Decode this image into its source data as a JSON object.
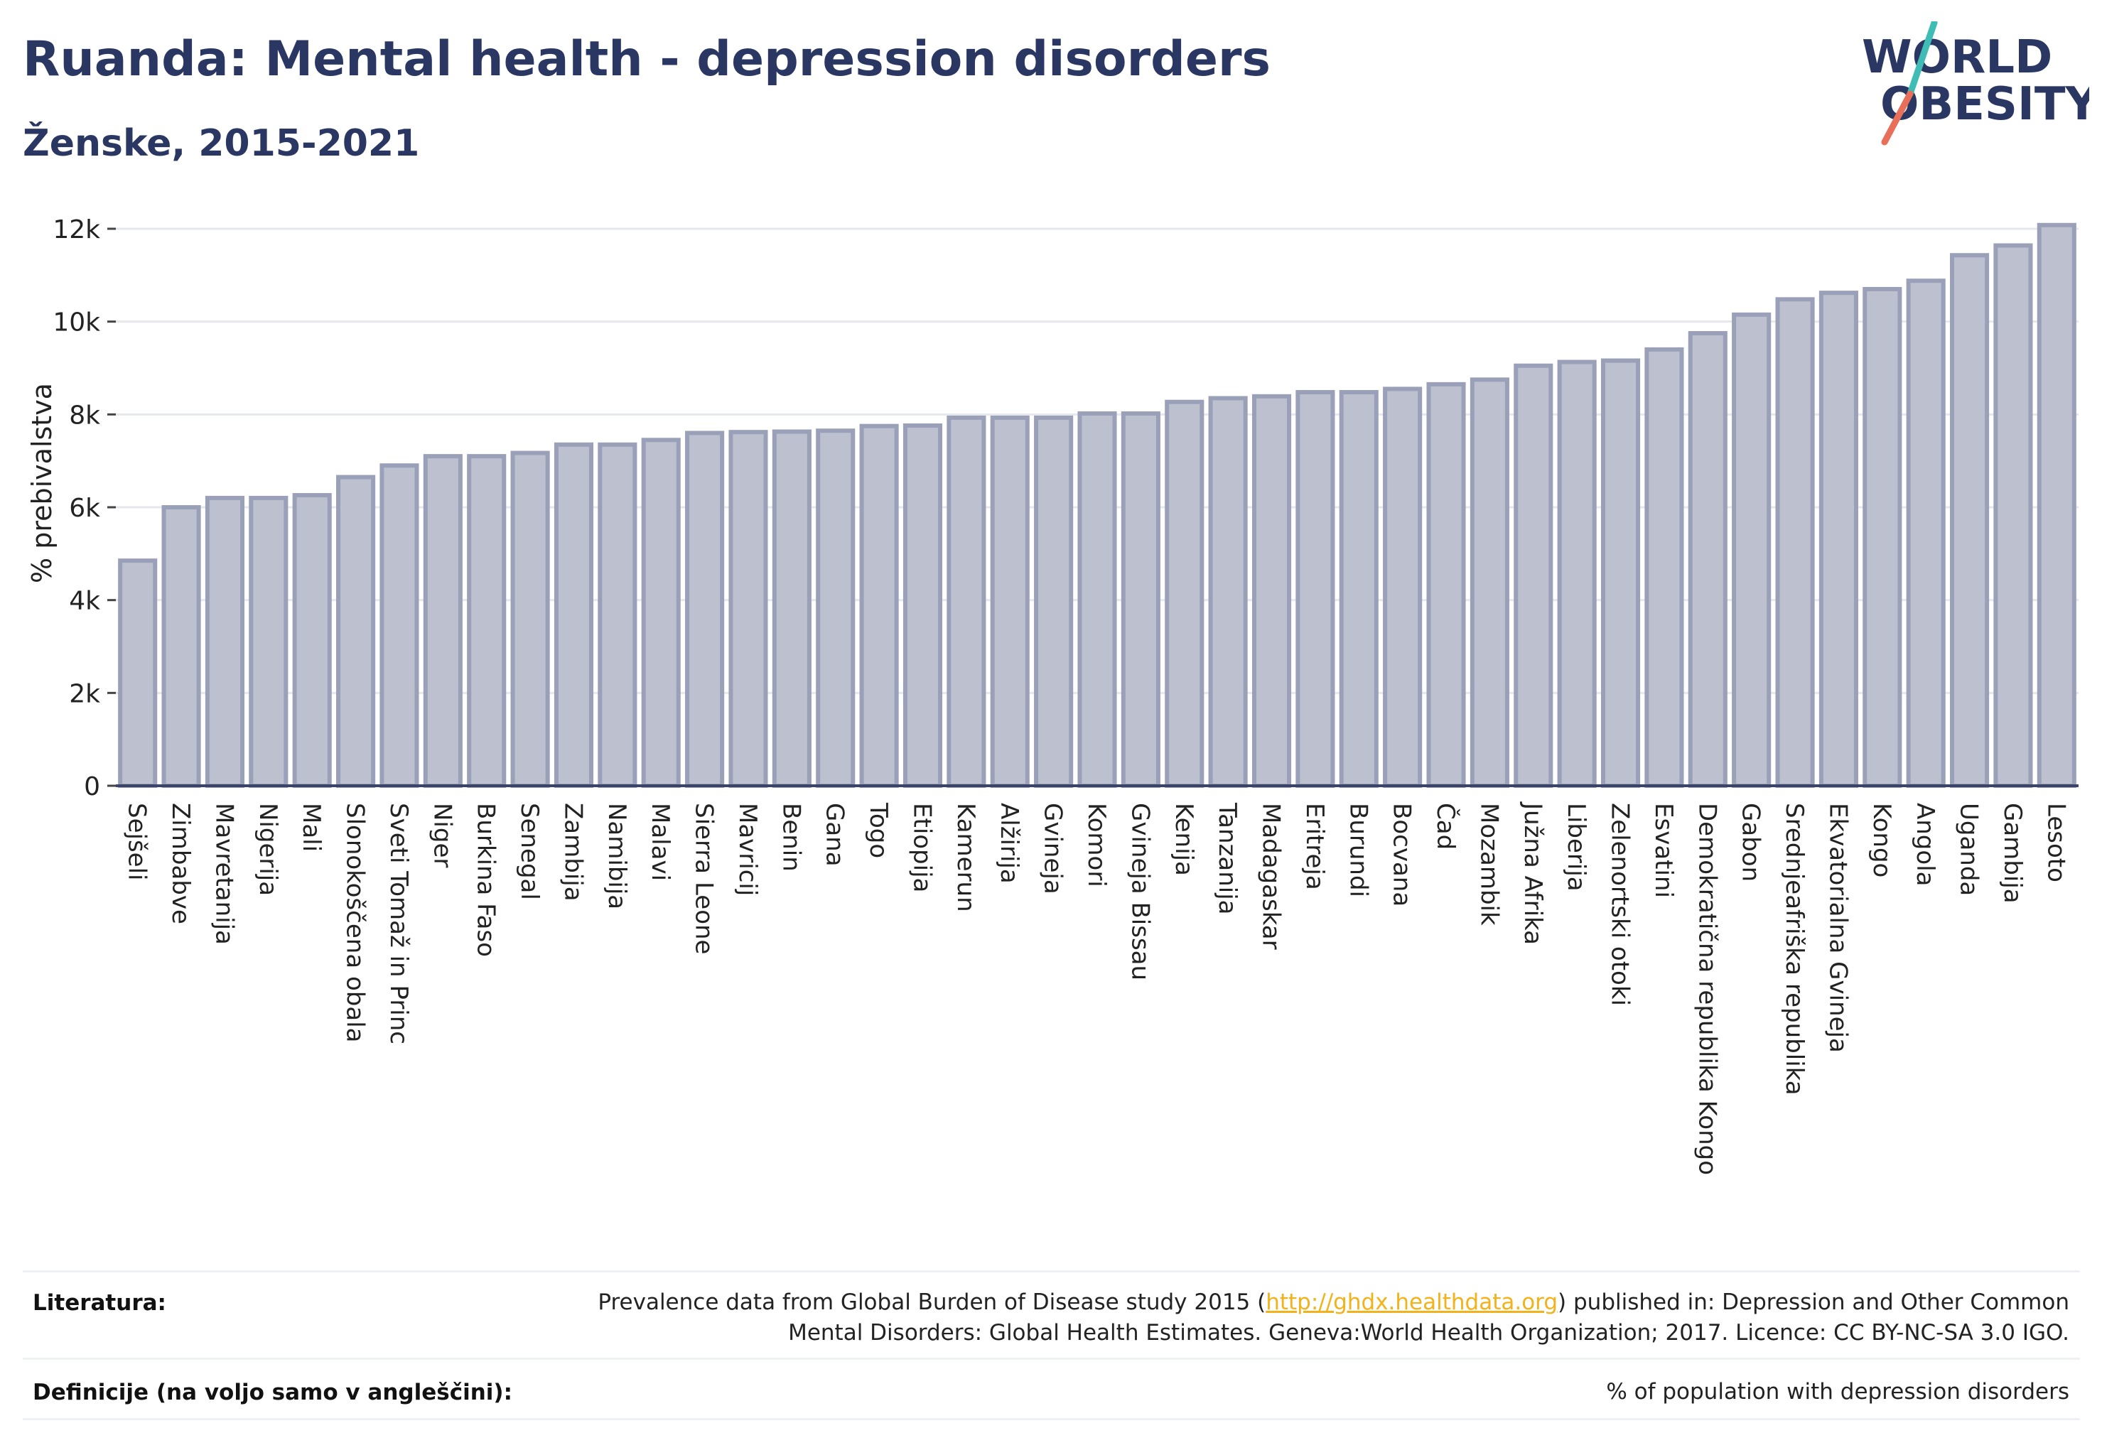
{
  "header": {
    "title": "Ruanda: Mental health - depression disorders",
    "subtitle": "Ženske, 2015-2021"
  },
  "logo": {
    "line1": "WORLD",
    "line2": "OBESITY",
    "accent_teal": "#3fbcb6",
    "accent_coral": "#e8705a"
  },
  "chart_data": {
    "type": "bar",
    "ylabel": "% prebivalstva",
    "xlabel": "",
    "ylim": [
      0,
      12500
    ],
    "yticks": [
      0,
      2000,
      4000,
      6000,
      8000,
      10000,
      12000
    ],
    "ytick_labels": [
      "0",
      "2k",
      "4k",
      "6k",
      "8k",
      "10k",
      "12k"
    ],
    "grid": true,
    "bar_fill": "#bcc0cf",
    "bar_stroke": "#9aa0b8",
    "categories": [
      "Sejšeli",
      "Zimbabve",
      "Mavretanija",
      "Nigerija",
      "Mali",
      "Slonokoščena obala",
      "Sveti Tomaž in Princ",
      "Niger",
      "Burkina Faso",
      "Senegal",
      "Zambija",
      "Namibija",
      "Malavi",
      "Sierra Leone",
      "Mavricij",
      "Benin",
      "Gana",
      "Togo",
      "Etiopija",
      "Kamerun",
      "Alžirija",
      "Gvineja",
      "Komori",
      "Gvineja Bissau",
      "Kenija",
      "Tanzanija",
      "Madagaskar",
      "Eritreja",
      "Burundi",
      "Bocvana",
      "Čad",
      "Mozambik",
      "Južna Afrika",
      "Liberija",
      "Zelenortski otoki",
      "Esvatini",
      "Demokratična republika Kongo",
      "Gabon",
      "Srednjeafriška republika",
      "Ekvatorialna Gvineja",
      "Kongo",
      "Angola",
      "Uganda",
      "Gambija",
      "Lesoto"
    ],
    "values": [
      4850,
      6000,
      6200,
      6200,
      6260,
      6650,
      6900,
      7100,
      7100,
      7170,
      7350,
      7350,
      7450,
      7600,
      7620,
      7630,
      7650,
      7750,
      7760,
      7930,
      7930,
      7930,
      8020,
      8020,
      8270,
      8350,
      8390,
      8480,
      8480,
      8550,
      8650,
      8750,
      9050,
      9130,
      9160,
      9400,
      9750,
      10150,
      10480,
      10620,
      10700,
      10880,
      11430,
      11640,
      12080
    ]
  },
  "footer": {
    "literature_label": "Literatura:",
    "literature_pre": "Prevalence data from Global Burden of Disease study 2015 (",
    "literature_link": "http://ghdx.healthdata.org",
    "literature_post": ") published in: Depression and Other Common",
    "literature_line2": "Mental Disorders: Global Health Estimates. Geneva:World Health Organization; 2017. Licence: CC BY-NC-SA 3.0 IGO.",
    "definitions_label": "Definicije (na voljo samo v angleščini):",
    "definitions_text": "% of population with depression disorders"
  }
}
